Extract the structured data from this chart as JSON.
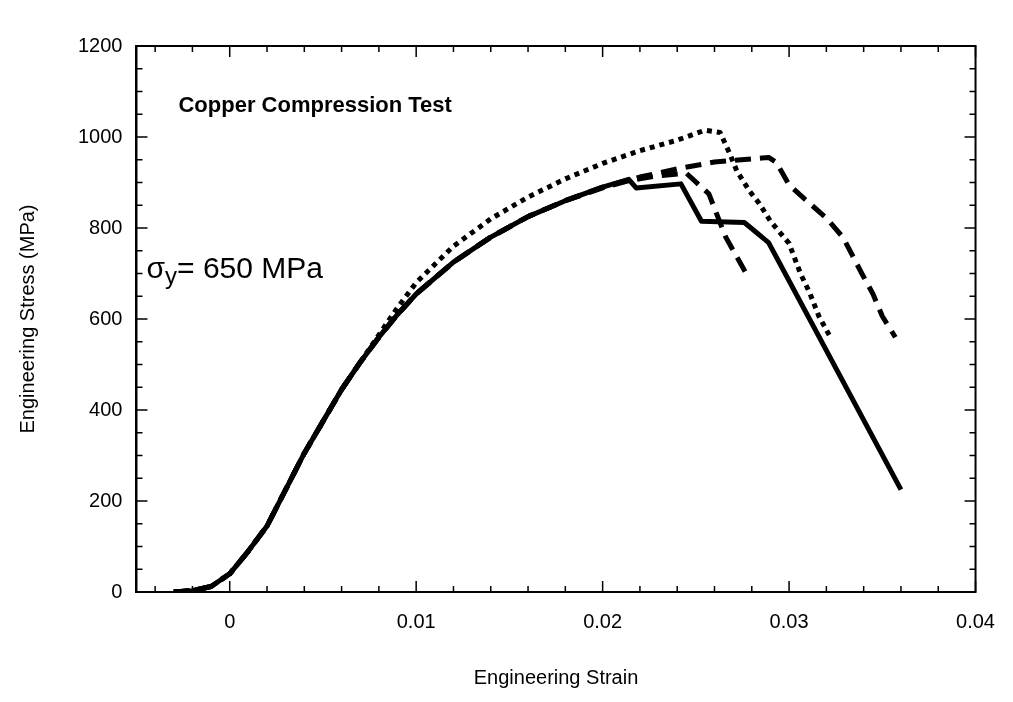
{
  "chart_data": {
    "type": "line",
    "xlabel": "Engineering Strain",
    "ylabel": "Engineering Stress (MPa)",
    "annotations": [
      "Copper Compression Test",
      "σ$_{y}$= 650 MPa"
    ],
    "xlim": [
      -0.005,
      0.04
    ],
    "ylim": [
      0,
      1200
    ],
    "xticks": [
      {
        "value": -0.004,
        "label": null
      },
      {
        "value": -0.002,
        "label": null
      },
      0,
      {
        "value": 0.002,
        "label": null
      },
      {
        "value": 0.004,
        "label": null
      },
      {
        "value": 0.006,
        "label": null
      },
      {
        "value": 0.008,
        "label": null
      },
      0.01,
      {
        "value": 0.012,
        "label": null
      },
      {
        "value": 0.014,
        "label": null
      },
      {
        "value": 0.016,
        "label": null
      },
      {
        "value": 0.018,
        "label": null
      },
      0.02,
      {
        "value": 0.022,
        "label": null
      },
      {
        "value": 0.024,
        "label": null
      },
      {
        "value": 0.026,
        "label": null
      },
      {
        "value": 0.028,
        "label": null
      },
      0.03,
      {
        "value": 0.032,
        "label": null
      },
      {
        "value": 0.034,
        "label": null
      },
      {
        "value": 0.036,
        "label": null
      },
      {
        "value": 0.038,
        "label": null
      },
      0.04
    ],
    "yticks": [
      0,
      {
        "value": 50,
        "label": null
      },
      {
        "value": 100,
        "label": null
      },
      {
        "value": 150,
        "label": null
      },
      200,
      {
        "value": 250,
        "label": null
      },
      {
        "value": 300,
        "label": null
      },
      {
        "value": 350,
        "label": null
      },
      400,
      {
        "value": 450,
        "label": null
      },
      {
        "value": 500,
        "label": null
      },
      {
        "value": 550,
        "label": null
      },
      600,
      {
        "value": 650,
        "label": null
      },
      {
        "value": 700,
        "label": null
      },
      {
        "value": 750,
        "label": null
      },
      800,
      {
        "value": 850,
        "label": null
      },
      {
        "value": 900,
        "label": null
      },
      {
        "value": 950,
        "label": null
      },
      1000,
      {
        "value": 1050,
        "label": null
      },
      {
        "value": 1100,
        "label": null
      },
      {
        "value": 1150,
        "label": null
      },
      1200
    ],
    "grid": false,
    "legend": false,
    "marker": "none",
    "series": [
      {
        "color": "#000000",
        "line_style": "solid",
        "x": [
          -0.003,
          -0.002,
          -0.001,
          0,
          0.001,
          0.002,
          0.003,
          0.004,
          0.005,
          0.006,
          0.007,
          0.008,
          0.009,
          0.01,
          0.012,
          0.014,
          0.016,
          0.018,
          0.02,
          0.0214,
          0.0218,
          0.0242,
          0.0253,
          0.0276,
          0.0289,
          0.036
        ],
        "values": [
          0,
          3,
          12,
          40,
          90,
          145,
          225,
          305,
          375,
          445,
          505,
          560,
          610,
          655,
          725,
          780,
          825,
          860,
          890,
          907,
          888,
          897,
          815,
          812,
          768,
          225
        ]
      },
      {
        "color": "#000000",
        "line_style": "dotted",
        "x": [
          -0.003,
          -0.002,
          -0.001,
          0,
          0.001,
          0.002,
          0.003,
          0.004,
          0.005,
          0.006,
          0.007,
          0.008,
          0.009,
          0.01,
          0.012,
          0.014,
          0.016,
          0.018,
          0.02,
          0.022,
          0.024,
          0.0255,
          0.0263,
          0.0268,
          0.0272,
          0.0279,
          0.0284,
          0.029,
          0.03,
          0.0306,
          0.0311,
          0.0316,
          0.0322
        ],
        "values": [
          0,
          3,
          12,
          40,
          90,
          145,
          225,
          305,
          375,
          445,
          505,
          565,
          625,
          680,
          760,
          820,
          868,
          908,
          942,
          970,
          993,
          1015,
          1010,
          965,
          925,
          880,
          854,
          815,
          766,
          701,
          658,
          606,
          561
        ]
      },
      {
        "color": "#000000",
        "line_style": "dashed",
        "x": [
          -0.003,
          -0.002,
          -0.001,
          0,
          0.001,
          0.002,
          0.003,
          0.004,
          0.005,
          0.006,
          0.007,
          0.008,
          0.009,
          0.01,
          0.012,
          0.014,
          0.016,
          0.018,
          0.02,
          0.022,
          0.024,
          0.026,
          0.028,
          0.0289,
          0.0293,
          0.03,
          0.0308,
          0.032,
          0.0329,
          0.0339,
          0.0345,
          0.035,
          0.0357
        ],
        "values": [
          0,
          3,
          12,
          40,
          90,
          145,
          225,
          305,
          375,
          445,
          505,
          560,
          610,
          655,
          725,
          780,
          825,
          860,
          890,
          912,
          930,
          945,
          952,
          955,
          945,
          895,
          865,
          822,
          779,
          700,
          655,
          606,
          560
        ]
      },
      {
        "color": "#000000",
        "line_style": "dashed",
        "x": [
          -0.003,
          -0.002,
          -0.001,
          0,
          0.001,
          0.002,
          0.003,
          0.004,
          0.005,
          0.006,
          0.007,
          0.008,
          0.009,
          0.01,
          0.012,
          0.014,
          0.016,
          0.018,
          0.02,
          0.0215,
          0.023,
          0.0245,
          0.0257,
          0.0266,
          0.0277
        ],
        "values": [
          0,
          3,
          12,
          40,
          90,
          145,
          225,
          305,
          375,
          445,
          505,
          560,
          610,
          655,
          725,
          780,
          825,
          860,
          888,
          905,
          915,
          920,
          875,
          780,
          700
        ]
      }
    ]
  }
}
